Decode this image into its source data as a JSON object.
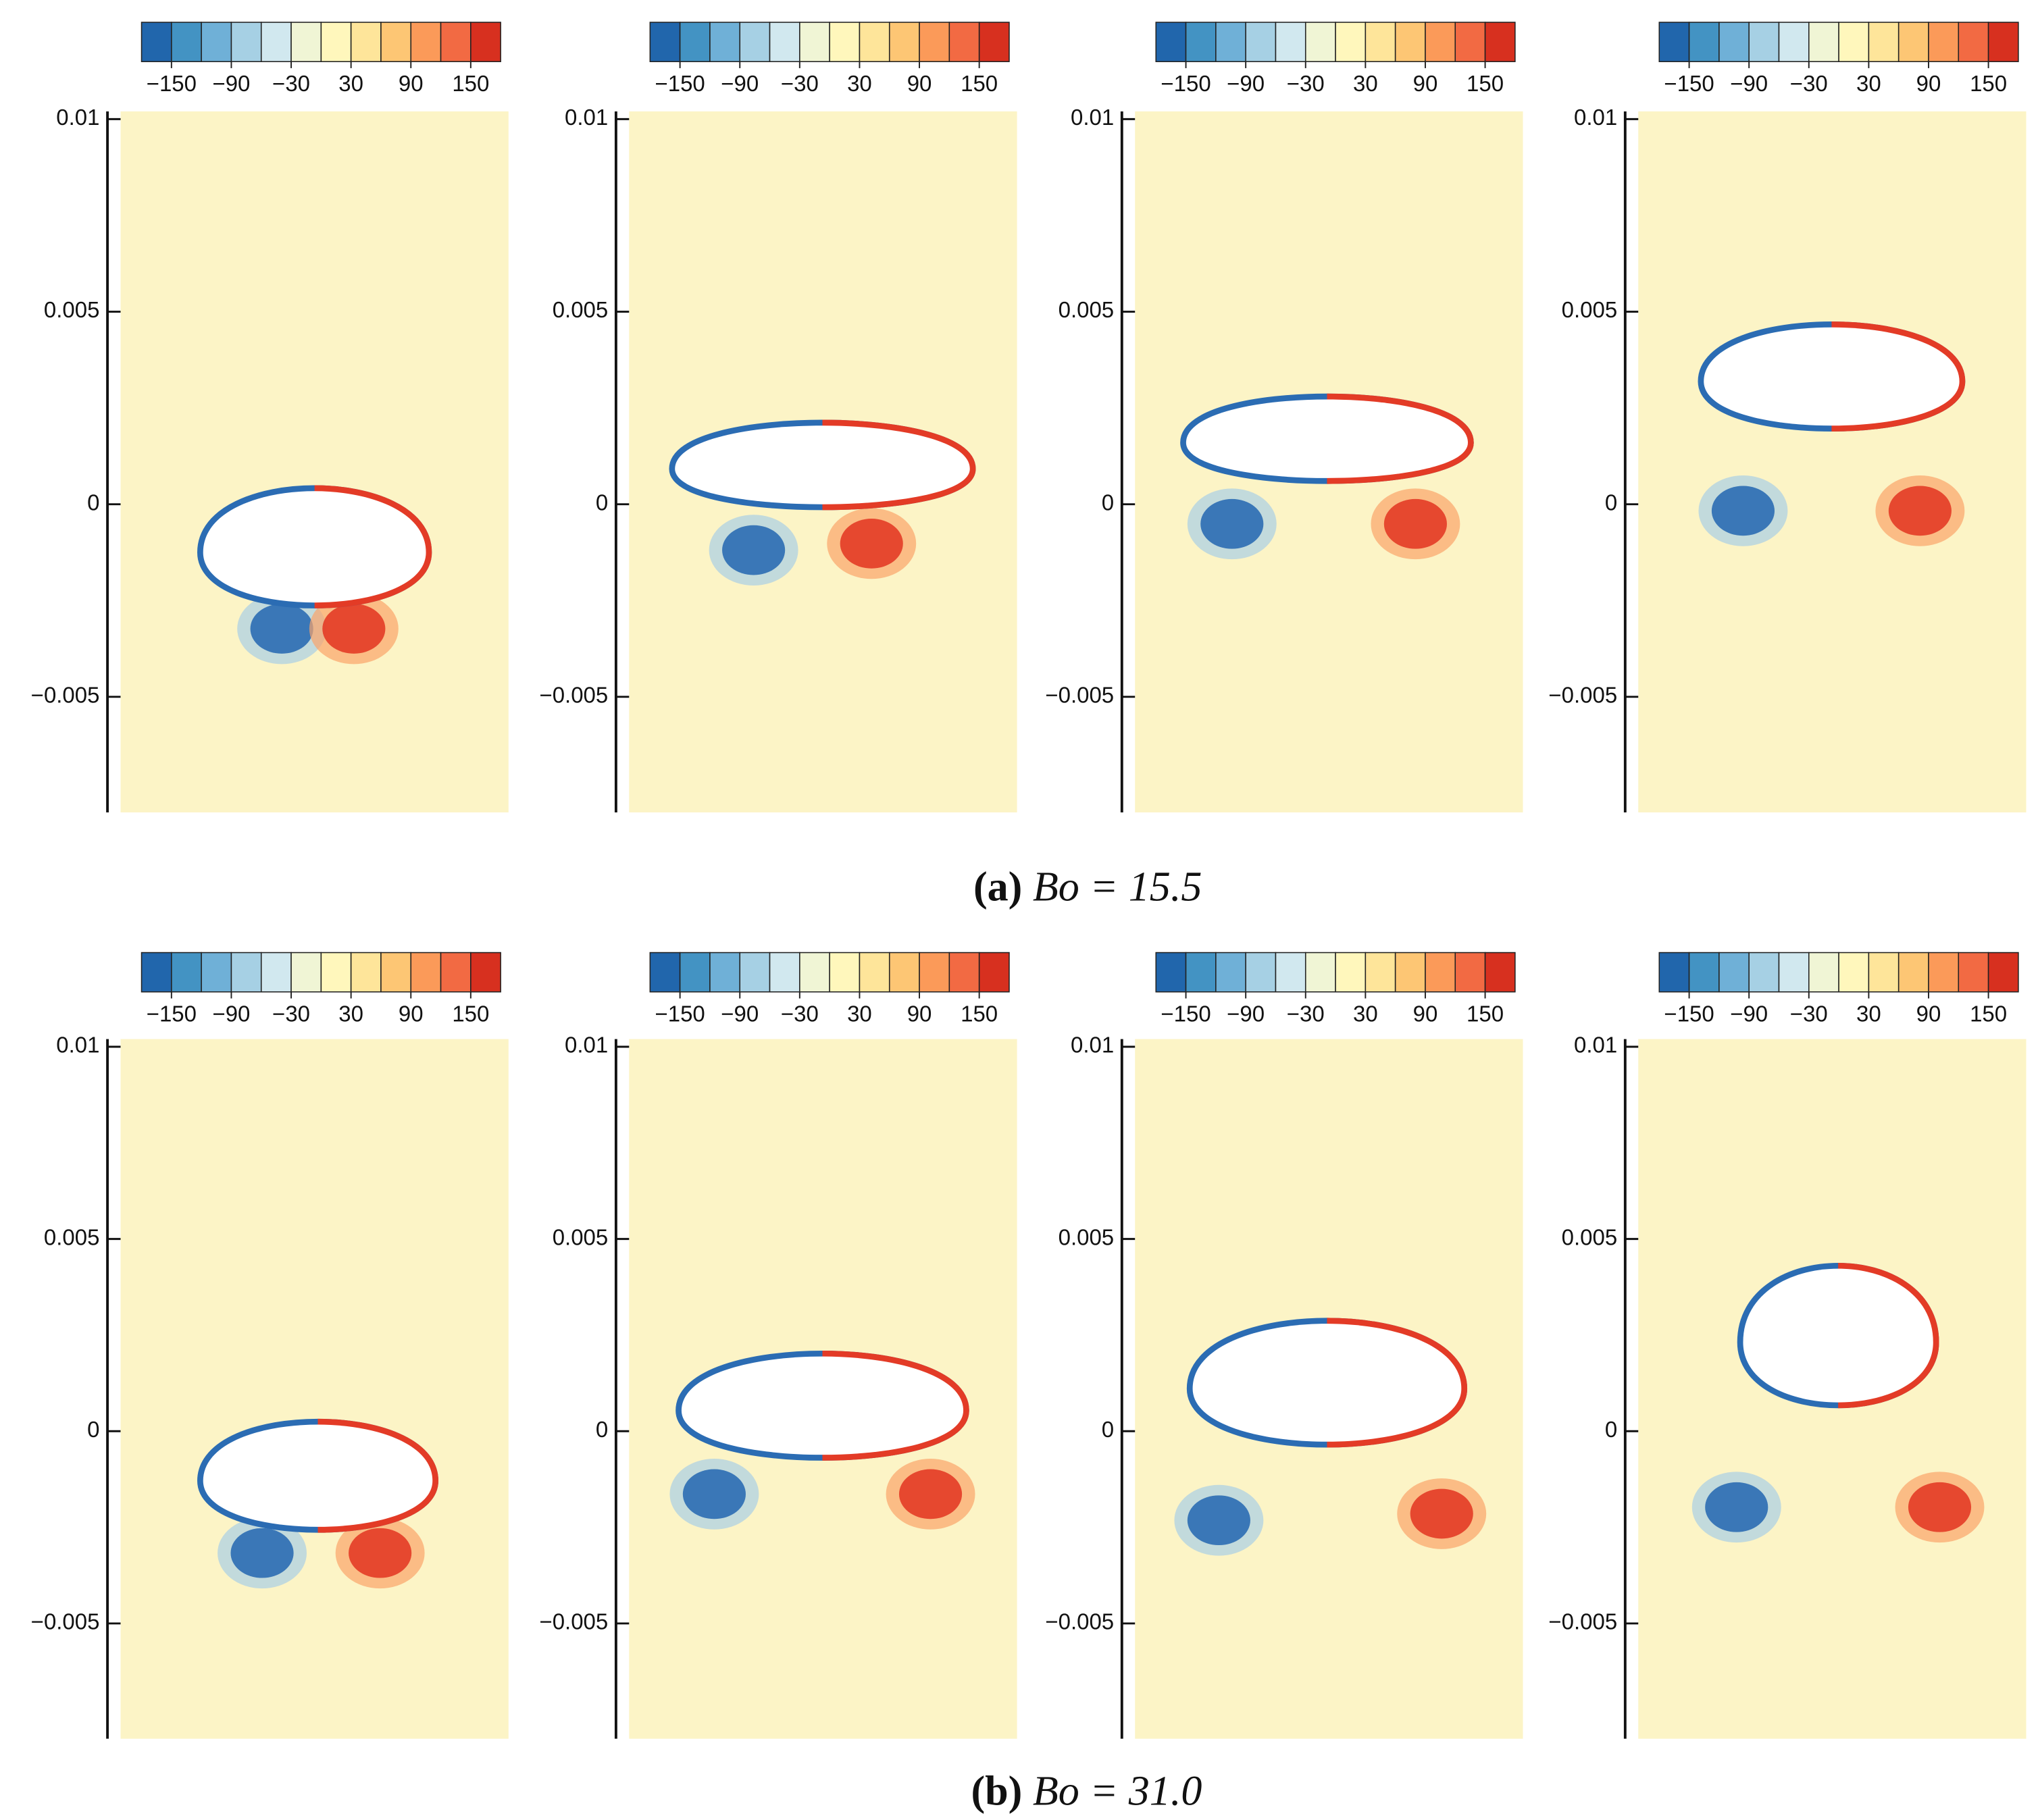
{
  "chart_data": [
    {
      "type": "contour",
      "ylim": [
        -0.008,
        0.0102
      ],
      "yticks": [
        0.01,
        0.005,
        0,
        {
          "value": -0.005,
          "label": "−0.005"
        }
      ],
      "colorbar": {
        "lim": [
          -180,
          180
        ],
        "colors": [
          "#2166ac",
          "#4393c3",
          "#6fb0d7",
          "#a6d0e4",
          "#d1e8ef",
          "#f0f5d5",
          "#fff7bc",
          "#fee59a",
          "#fdc674",
          "#fb9a59",
          "#f26a43",
          "#d7301f"
        ],
        "ticks": [
          {
            "value": -150,
            "label": "−150"
          },
          {
            "value": -90,
            "label": "−90"
          },
          {
            "value": -30,
            "label": "−30"
          },
          30,
          90,
          150
        ]
      }
    },
    {
      "type": "contour",
      "ylim": [
        -0.008,
        0.0102
      ],
      "yticks": [
        0.01,
        0.005,
        0,
        {
          "value": -0.005,
          "label": "−0.005"
        }
      ],
      "colorbar": {
        "lim": [
          -180,
          180
        ],
        "colors": [
          "#2166ac",
          "#4393c3",
          "#6fb0d7",
          "#a6d0e4",
          "#d1e8ef",
          "#f0f5d5",
          "#fff7bc",
          "#fee59a",
          "#fdc674",
          "#fb9a59",
          "#f26a43",
          "#d7301f"
        ],
        "ticks": [
          {
            "value": -150,
            "label": "−150"
          },
          {
            "value": -90,
            "label": "−90"
          },
          {
            "value": -30,
            "label": "−30"
          },
          30,
          90,
          150
        ]
      }
    },
    {
      "type": "contour",
      "ylim": [
        -0.008,
        0.0102
      ],
      "yticks": [
        0.01,
        0.005,
        0,
        {
          "value": -0.005,
          "label": "−0.005"
        }
      ],
      "colorbar": {
        "lim": [
          -180,
          180
        ],
        "colors": [
          "#2166ac",
          "#4393c3",
          "#6fb0d7",
          "#a6d0e4",
          "#d1e8ef",
          "#f0f5d5",
          "#fff7bc",
          "#fee59a",
          "#fdc674",
          "#fb9a59",
          "#f26a43",
          "#d7301f"
        ],
        "ticks": [
          {
            "value": -150,
            "label": "−150"
          },
          {
            "value": -90,
            "label": "−90"
          },
          {
            "value": -30,
            "label": "−30"
          },
          30,
          90,
          150
        ]
      }
    },
    {
      "type": "contour",
      "ylim": [
        -0.008,
        0.0102
      ],
      "yticks": [
        0.01,
        0.005,
        0,
        {
          "value": -0.005,
          "label": "−0.005"
        }
      ],
      "colorbar": {
        "lim": [
          -180,
          180
        ],
        "colors": [
          "#2166ac",
          "#4393c3",
          "#6fb0d7",
          "#a6d0e4",
          "#d1e8ef",
          "#f0f5d5",
          "#fff7bc",
          "#fee59a",
          "#fdc674",
          "#fb9a59",
          "#f26a43",
          "#d7301f"
        ],
        "ticks": [
          {
            "value": -150,
            "label": "−150"
          },
          {
            "value": -90,
            "label": "−90"
          },
          {
            "value": -30,
            "label": "−30"
          },
          30,
          90,
          150
        ]
      }
    },
    {
      "type": "contour",
      "ylim": [
        -0.008,
        0.0102
      ],
      "yticks": [
        0.01,
        0.005,
        0,
        {
          "value": -0.005,
          "label": "−0.005"
        }
      ],
      "colorbar": {
        "lim": [
          -180,
          180
        ],
        "colors": [
          "#2166ac",
          "#4393c3",
          "#6fb0d7",
          "#a6d0e4",
          "#d1e8ef",
          "#f0f5d5",
          "#fff7bc",
          "#fee59a",
          "#fdc674",
          "#fb9a59",
          "#f26a43",
          "#d7301f"
        ],
        "ticks": [
          {
            "value": -150,
            "label": "−150"
          },
          {
            "value": -90,
            "label": "−90"
          },
          {
            "value": -30,
            "label": "−30"
          },
          30,
          90,
          150
        ]
      }
    },
    {
      "type": "contour",
      "ylim": [
        -0.008,
        0.0102
      ],
      "yticks": [
        0.01,
        0.005,
        0,
        {
          "value": -0.005,
          "label": "−0.005"
        }
      ],
      "colorbar": {
        "lim": [
          -180,
          180
        ],
        "colors": [
          "#2166ac",
          "#4393c3",
          "#6fb0d7",
          "#a6d0e4",
          "#d1e8ef",
          "#f0f5d5",
          "#fff7bc",
          "#fee59a",
          "#fdc674",
          "#fb9a59",
          "#f26a43",
          "#d7301f"
        ],
        "ticks": [
          {
            "value": -150,
            "label": "−150"
          },
          {
            "value": -90,
            "label": "−90"
          },
          {
            "value": -30,
            "label": "−30"
          },
          30,
          90,
          150
        ]
      }
    },
    {
      "type": "contour",
      "ylim": [
        -0.008,
        0.0102
      ],
      "yticks": [
        0.01,
        0.005,
        0,
        {
          "value": -0.005,
          "label": "−0.005"
        }
      ],
      "colorbar": {
        "lim": [
          -180,
          180
        ],
        "colors": [
          "#2166ac",
          "#4393c3",
          "#6fb0d7",
          "#a6d0e4",
          "#d1e8ef",
          "#f0f5d5",
          "#fff7bc",
          "#fee59a",
          "#fdc674",
          "#fb9a59",
          "#f26a43",
          "#d7301f"
        ],
        "ticks": [
          {
            "value": -150,
            "label": "−150"
          },
          {
            "value": -90,
            "label": "−90"
          },
          {
            "value": -30,
            "label": "−30"
          },
          30,
          90,
          150
        ]
      }
    },
    {
      "type": "contour",
      "ylim": [
        -0.008,
        0.0102
      ],
      "yticks": [
        0.01,
        0.005,
        0,
        {
          "value": -0.005,
          "label": "−0.005"
        }
      ],
      "colorbar": {
        "lim": [
          -180,
          180
        ],
        "colors": [
          "#2166ac",
          "#4393c3",
          "#6fb0d7",
          "#a6d0e4",
          "#d1e8ef",
          "#f0f5d5",
          "#fff7bc",
          "#fee59a",
          "#fdc674",
          "#fb9a59",
          "#f26a43",
          "#d7301f"
        ],
        "ticks": [
          {
            "value": -150,
            "label": "−150"
          },
          {
            "value": -90,
            "label": "−90"
          },
          {
            "value": -30,
            "label": "−30"
          },
          30,
          90,
          150
        ]
      }
    }
  ],
  "captions": [
    {
      "tag": "(a)",
      "text": "Bo = 15.5"
    },
    {
      "tag": "(b)",
      "text": "Bo = 31.0"
    }
  ]
}
